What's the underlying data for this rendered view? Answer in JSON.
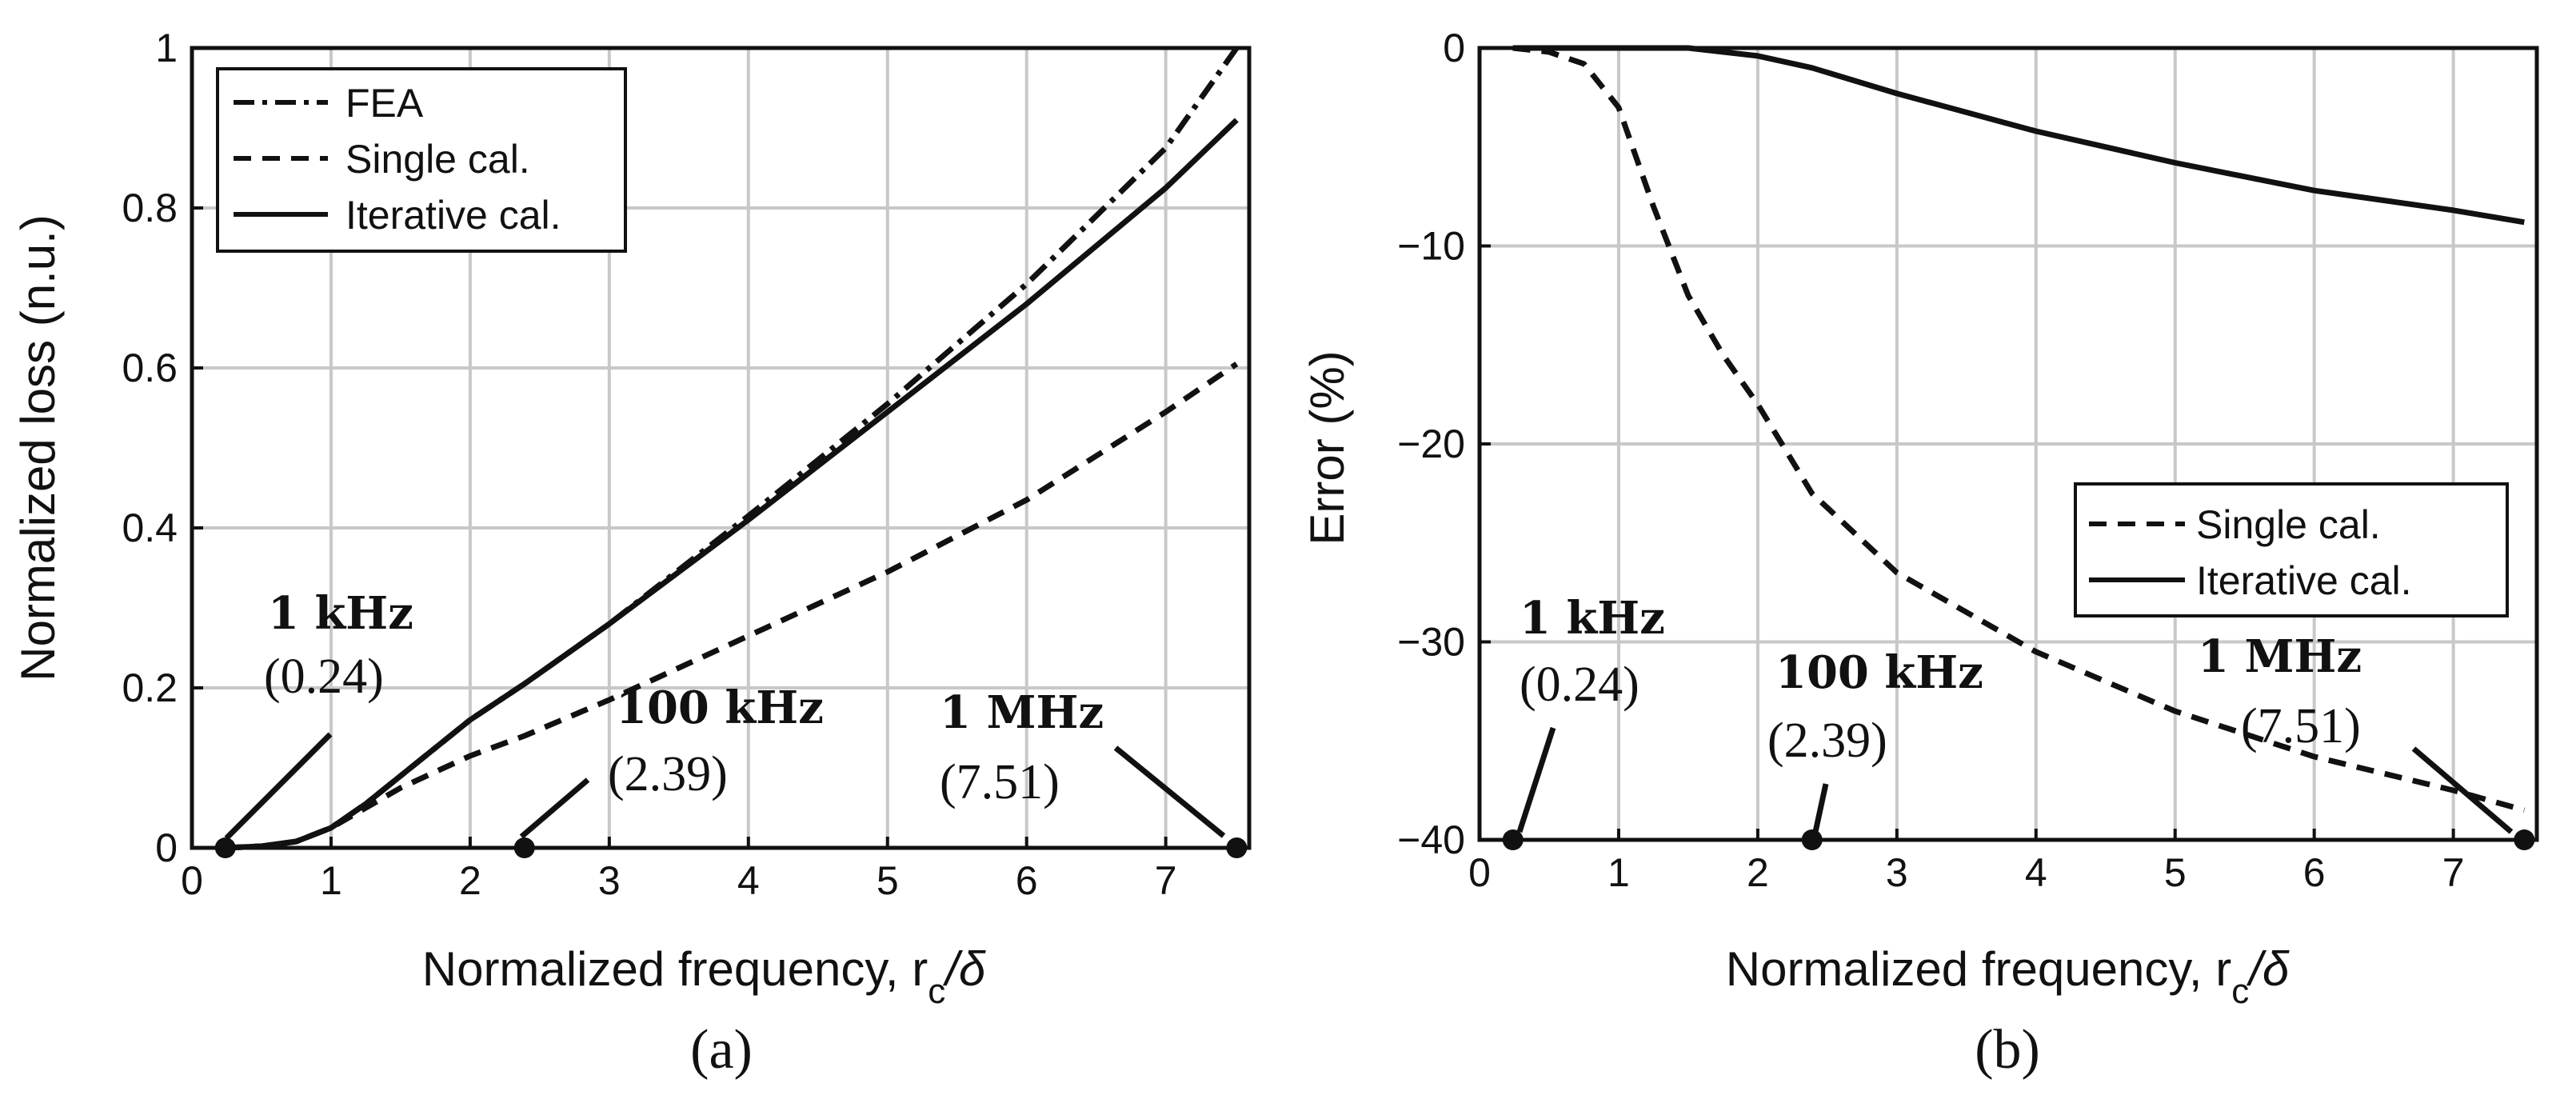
{
  "chart_data": [
    {
      "type": "line",
      "panel_label": "(a)",
      "xlabel": "Normalized frequency, r",
      "xlabel_sub": "c",
      "xlabel_tail": "/δ",
      "ylabel": "Normalized loss (n.u.)",
      "xlim": [
        0,
        7.6
      ],
      "ylim": [
        0,
        1
      ],
      "x_ticks": [
        0,
        1,
        2,
        3,
        4,
        5,
        6,
        7
      ],
      "y_ticks": [
        0,
        0.2,
        0.4,
        0.6,
        0.8,
        1
      ],
      "y_tick_labels": [
        "0",
        "0.2",
        "0.4",
        "0.6",
        "0.8",
        "1"
      ],
      "legend_position": "top-left",
      "series": [
        {
          "name": "FEA",
          "style": "dashdot",
          "x": [
            0.24,
            0.5,
            0.75,
            1.0,
            1.25,
            1.5,
            2.0,
            2.39,
            3.0,
            4.0,
            5.0,
            6.0,
            7.0,
            7.51
          ],
          "y": [
            0.0,
            0.002,
            0.008,
            0.025,
            0.055,
            0.09,
            0.16,
            0.205,
            0.28,
            0.415,
            0.555,
            0.705,
            0.875,
            1.0
          ]
        },
        {
          "name": "Single cal.",
          "style": "dashed",
          "x": [
            0.24,
            0.5,
            0.75,
            1.0,
            1.25,
            1.5,
            2.0,
            2.39,
            3.0,
            4.0,
            5.0,
            6.0,
            7.0,
            7.51
          ],
          "y": [
            0.0,
            0.002,
            0.008,
            0.025,
            0.05,
            0.075,
            0.115,
            0.14,
            0.185,
            0.265,
            0.345,
            0.435,
            0.545,
            0.605
          ]
        },
        {
          "name": "Iterative cal.",
          "style": "solid",
          "x": [
            0.24,
            0.5,
            0.75,
            1.0,
            1.25,
            1.5,
            2.0,
            2.39,
            3.0,
            4.0,
            5.0,
            6.0,
            7.0,
            7.51
          ],
          "y": [
            0.0,
            0.002,
            0.008,
            0.025,
            0.055,
            0.09,
            0.16,
            0.205,
            0.28,
            0.41,
            0.545,
            0.68,
            0.825,
            0.91
          ]
        }
      ],
      "markers": [
        {
          "x": 0.24,
          "y": 0,
          "label": "1 kHz",
          "value": "(0.24)"
        },
        {
          "x": 2.39,
          "y": 0,
          "label": "100 kHz",
          "value": "(2.39)"
        },
        {
          "x": 7.51,
          "y": 0,
          "label": "1 MHz",
          "value": "(7.51)"
        }
      ]
    },
    {
      "type": "line",
      "panel_label": "(b)",
      "xlabel": "Normalized frequency, r",
      "xlabel_sub": "c",
      "xlabel_tail": "/δ",
      "ylabel": "Error (%)",
      "xlim": [
        0,
        7.6
      ],
      "ylim": [
        -40,
        0
      ],
      "x_ticks": [
        0,
        1,
        2,
        3,
        4,
        5,
        6,
        7
      ],
      "y_ticks": [
        0,
        -10,
        -20,
        -30,
        -40
      ],
      "y_tick_labels": [
        "0",
        "−10",
        "−20",
        "−30",
        "−40"
      ],
      "legend_position": "center-right",
      "series": [
        {
          "name": "Single cal.",
          "style": "dashed",
          "x": [
            0.24,
            0.5,
            0.75,
            1.0,
            1.25,
            1.5,
            1.75,
            2.0,
            2.39,
            3.0,
            4.0,
            5.0,
            6.0,
            7.0,
            7.51
          ],
          "y": [
            0.0,
            -0.2,
            -0.8,
            -3.0,
            -8.0,
            -12.5,
            -15.5,
            -18.0,
            -22.5,
            -26.5,
            -30.5,
            -33.5,
            -35.8,
            -37.5,
            -38.5
          ]
        },
        {
          "name": "Iterative cal.",
          "style": "solid",
          "x": [
            0.24,
            0.5,
            0.75,
            1.0,
            1.5,
            2.0,
            2.39,
            3.0,
            4.0,
            5.0,
            6.0,
            7.0,
            7.51
          ],
          "y": [
            0.0,
            0.0,
            0.0,
            0.0,
            0.0,
            -0.4,
            -1.0,
            -2.3,
            -4.2,
            -5.8,
            -7.2,
            -8.2,
            -8.8
          ]
        }
      ],
      "markers": [
        {
          "x": 0.24,
          "y": -40,
          "label": "1 kHz",
          "value": "(0.24)"
        },
        {
          "x": 2.39,
          "y": -40,
          "label": "100 kHz",
          "value": "(2.39)"
        },
        {
          "x": 7.51,
          "y": -40,
          "label": "1 MHz",
          "value": "(7.51)"
        }
      ]
    }
  ],
  "colors": {
    "line": "#111111",
    "grid": "#c8c8c8",
    "background": "#ffffff"
  }
}
